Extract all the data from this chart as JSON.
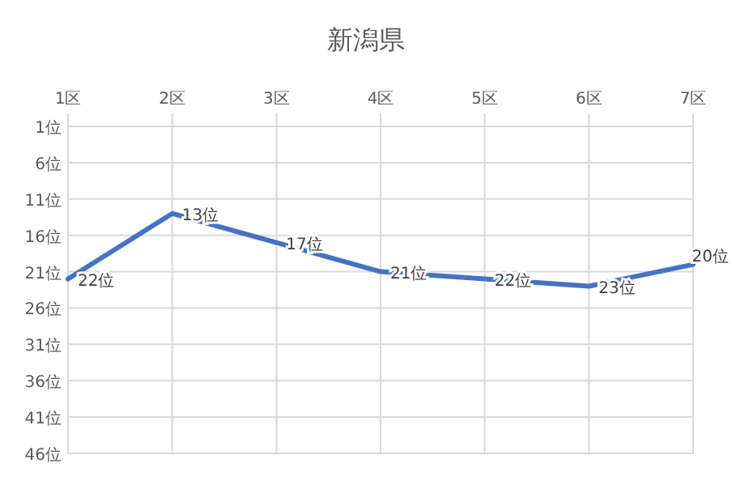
{
  "chart_data": {
    "type": "line",
    "title": "新潟県",
    "categories": [
      "1区",
      "2区",
      "3区",
      "4区",
      "5区",
      "6区",
      "7区"
    ],
    "series": [
      {
        "color": "#4472c4",
        "values": [
          22,
          13,
          17,
          21,
          22,
          23,
          20
        ],
        "value_labels": [
          "22位",
          "13位",
          "17位",
          "21位",
          "22位",
          "23位",
          "20位"
        ]
      }
    ],
    "ylim": [
      46,
      1
    ],
    "yticks": [
      {
        "value": 1,
        "label": "1位"
      },
      {
        "value": 6,
        "label": "6位"
      },
      {
        "value": 11,
        "label": "11位"
      },
      {
        "value": 16,
        "label": "16位"
      },
      {
        "value": 21,
        "label": "21位"
      },
      {
        "value": 26,
        "label": "26位"
      },
      {
        "value": 31,
        "label": "31位"
      },
      {
        "value": 36,
        "label": "36位"
      },
      {
        "value": 41,
        "label": "41位"
      },
      {
        "value": 46,
        "label": "46位"
      }
    ],
    "grid": true,
    "marker": "none",
    "line_style": "solid"
  }
}
